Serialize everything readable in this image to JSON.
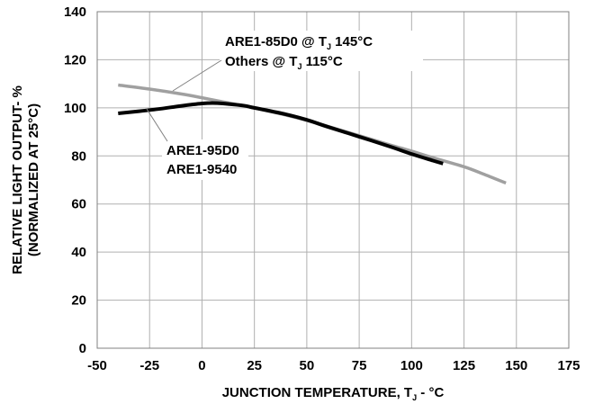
{
  "chart_data": {
    "type": "line",
    "title": "",
    "xlabel": {
      "pre": "JUNCTION TEMPERATURE, T",
      "sub": "J",
      "post": " - °C"
    },
    "ylabel": [
      "RELATIVE LIGHT OUTPUT- %",
      "(NORMALIZED AT 25°C)"
    ],
    "xlim": [
      -50,
      175
    ],
    "ylim": [
      0,
      140
    ],
    "xticks": [
      -50,
      -25,
      0,
      25,
      50,
      75,
      100,
      125,
      150,
      175
    ],
    "yticks": [
      0,
      20,
      40,
      60,
      80,
      100,
      120,
      140
    ],
    "grid": true,
    "series": [
      {
        "label_lines": [
          {
            "pre": "ARE1-85D0 @ T",
            "sub": "J",
            "post": " 145°C"
          },
          {
            "pre": "Others @ T",
            "sub": "J",
            "post": " 115°C"
          }
        ],
        "color": "#a0a0a0",
        "x": [
          -40,
          -25,
          -10,
          0,
          10,
          25,
          40,
          50,
          60,
          75,
          90,
          100,
          110,
          125,
          135,
          145
        ],
        "y": [
          109.5,
          107.8,
          105.8,
          104.2,
          102.5,
          100,
          97,
          94.8,
          92.3,
          88.4,
          84.5,
          82,
          79.3,
          75.5,
          72.2,
          68.7
        ]
      },
      {
        "label_lines": [
          {
            "pre": "ARE1-95D0",
            "sub": "",
            "post": ""
          },
          {
            "pre": "ARE1-9540",
            "sub": "",
            "post": ""
          }
        ],
        "color": "#000000",
        "x": [
          -40,
          -30,
          -20,
          -10,
          0,
          5,
          10,
          20,
          25,
          40,
          50,
          60,
          75,
          90,
          100,
          110,
          115
        ],
        "y": [
          97.7,
          98.6,
          99.6,
          100.8,
          101.8,
          102,
          101.8,
          100.9,
          100,
          97.3,
          95,
          92.1,
          88,
          83.8,
          80.8,
          78.1,
          76.8
        ]
      }
    ]
  }
}
